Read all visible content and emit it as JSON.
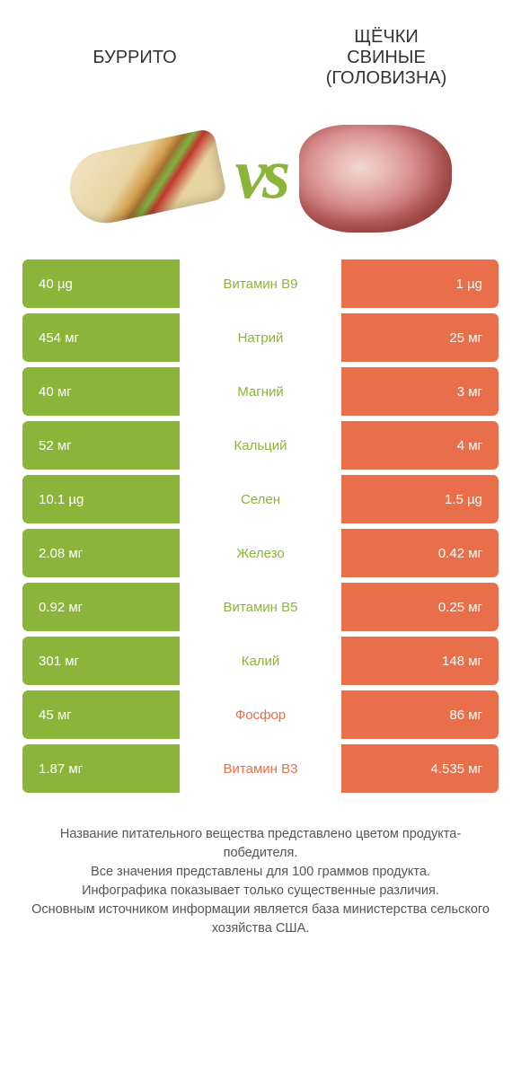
{
  "colors": {
    "green": "#8bb53a",
    "orange": "#e86f4a",
    "text_dark": "#333333"
  },
  "header": {
    "left_title": "БУРРИТО",
    "right_title": "ЩЁЧКИ\nСВИНЫЕ\n(ГОЛОВИЗНА)",
    "vs_label": "vs"
  },
  "table": {
    "rows": [
      {
        "left": "40 µg",
        "label": "Витамин B9",
        "right": "1 µg",
        "winner": "left"
      },
      {
        "left": "454 мг",
        "label": "Натрий",
        "right": "25 мг",
        "winner": "left"
      },
      {
        "left": "40 мг",
        "label": "Магний",
        "right": "3 мг",
        "winner": "left"
      },
      {
        "left": "52 мг",
        "label": "Кальций",
        "right": "4 мг",
        "winner": "left"
      },
      {
        "left": "10.1 µg",
        "label": "Селен",
        "right": "1.5 µg",
        "winner": "left"
      },
      {
        "left": "2.08 мг",
        "label": "Железо",
        "right": "0.42 мг",
        "winner": "left"
      },
      {
        "left": "0.92 мг",
        "label": "Витамин B5",
        "right": "0.25 мг",
        "winner": "left"
      },
      {
        "left": "301 мг",
        "label": "Калий",
        "right": "148 мг",
        "winner": "left"
      },
      {
        "left": "45 мг",
        "label": "Фосфор",
        "right": "86 мг",
        "winner": "right"
      },
      {
        "left": "1.87 мг",
        "label": "Витамин B3",
        "right": "4.535 мг",
        "winner": "right"
      }
    ]
  },
  "footer": {
    "line1": "Название питательного вещества представлено цветом продукта-победителя.",
    "line2": "Все значения представлены для 100 граммов продукта.",
    "line3": "Инфографика показывает только существенные различия.",
    "line4": "Основным источником информации является база министерства сельского хозяйства США."
  }
}
